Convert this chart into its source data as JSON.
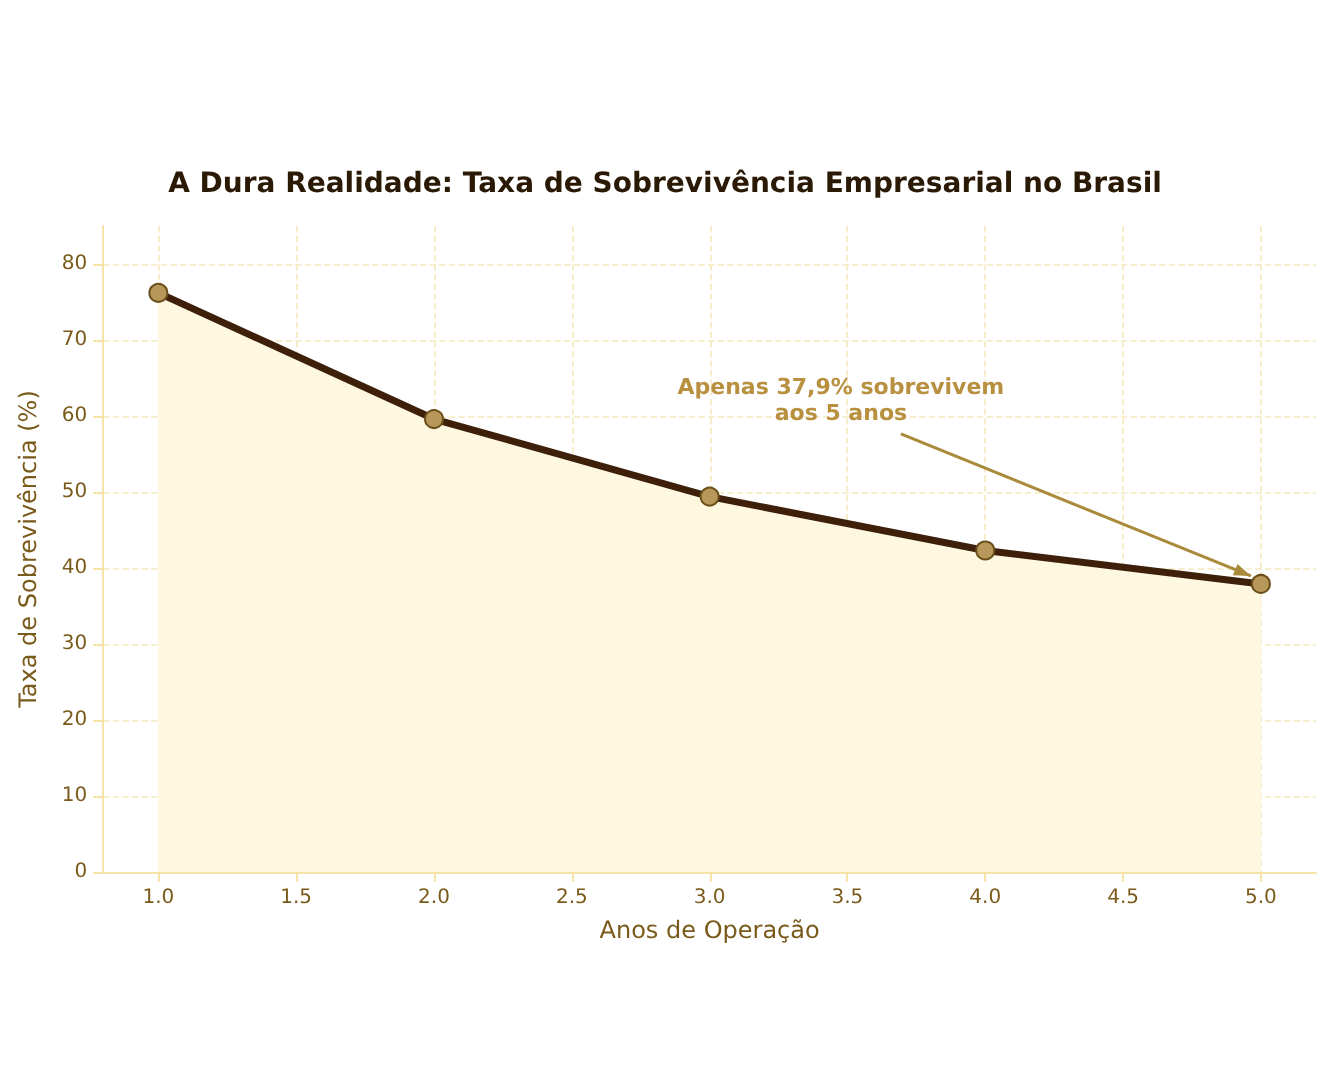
{
  "chart_data": {
    "type": "area",
    "title": "A Dura Realidade: Taxa de Sobrevivência Empresarial no Brasil",
    "xlabel": "Anos de Operação",
    "ylabel": "Taxa de Sobrevivência (%)",
    "x": [
      1,
      2,
      3,
      4,
      5
    ],
    "series": [
      {
        "color": "#3d1f0a",
        "values": [
          76.2,
          59.6,
          49.4,
          42.3,
          37.9
        ]
      }
    ],
    "xlim": [
      0.8,
      5.2
    ],
    "xticks": [
      {
        "value": 1,
        "label": "1.0"
      },
      1.5,
      {
        "value": 2,
        "label": "2.0"
      },
      2.5,
      {
        "value": 3,
        "label": "3.0"
      },
      3.5,
      {
        "value": 4,
        "label": "4.0"
      },
      4.5,
      {
        "value": 5,
        "label": "5.0"
      }
    ],
    "ylim": [
      0,
      85
    ],
    "yticks": [
      0,
      10,
      20,
      30,
      40,
      50,
      60,
      70,
      80
    ],
    "annotations": [
      {
        "text": "Apenas 37,9% sobrevivem\naos 5 anos",
        "x": 5,
        "y": 37.9
      }
    ],
    "grid": true,
    "marker": "circle",
    "line_style": "solid"
  }
}
